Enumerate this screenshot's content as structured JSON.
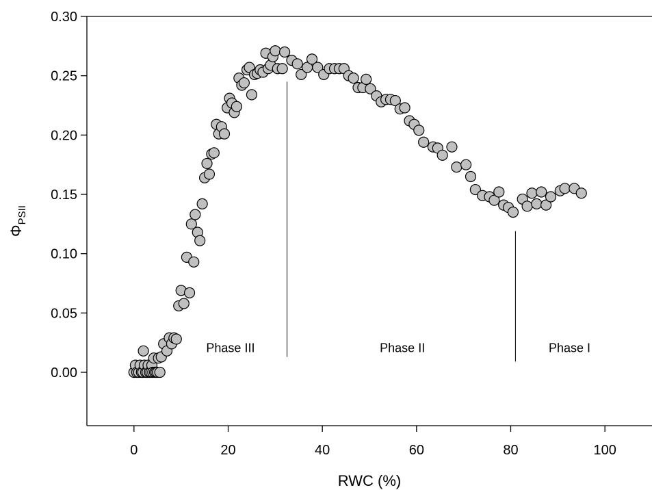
{
  "chart_data": {
    "type": "scatter",
    "xlabel": "RWC (%)",
    "ylabel": "Φ",
    "ylabel_subscript": "PSII",
    "xlim": [
      -10,
      110
    ],
    "ylim": [
      -0.045,
      0.3
    ],
    "x_ticks": [
      {
        "value": 0,
        "label": "0"
      },
      {
        "value": 20,
        "label": "20"
      },
      {
        "value": 40,
        "label": "40"
      },
      {
        "value": 60,
        "label": "60"
      },
      {
        "value": 80,
        "label": "80"
      },
      {
        "value": 100,
        "label": "100"
      }
    ],
    "y_ticks": [
      {
        "value": 0,
        "label": "0.00"
      },
      {
        "value": 0.05,
        "label": "0.05"
      },
      {
        "value": 0.1,
        "label": "0.10"
      },
      {
        "value": 0.15,
        "label": "0.15"
      },
      {
        "value": 0.2,
        "label": "0.20"
      },
      {
        "value": 0.25,
        "label": "0.25"
      },
      {
        "value": 0.3,
        "label": "0.30"
      }
    ],
    "grid": false,
    "colors": {
      "marker_fill": "#c0c0c0",
      "marker_edge": "#000000"
    },
    "phase_dividers": [
      {
        "x": 32.5,
        "y_top": 0.245,
        "y_bottom": 0.013
      },
      {
        "x": 81.0,
        "y_top": 0.119,
        "y_bottom": 0.009
      }
    ],
    "phase_labels": [
      {
        "text": "Phase III",
        "x": 20.5,
        "y": 0.017
      },
      {
        "text": "Phase II",
        "x": 57.0,
        "y": 0.017
      },
      {
        "text": "Phase I",
        "x": 92.5,
        "y": 0.017
      }
    ],
    "points": [
      [
        0.0,
        0.0
      ],
      [
        0.3,
        0.006
      ],
      [
        0.6,
        0.0
      ],
      [
        1.0,
        0.0
      ],
      [
        1.3,
        0.006
      ],
      [
        1.6,
        0.0
      ],
      [
        1.9,
        0.0
      ],
      [
        2.0,
        0.018
      ],
      [
        2.2,
        0.006
      ],
      [
        2.5,
        0.0
      ],
      [
        2.8,
        0.0
      ],
      [
        3.0,
        0.006
      ],
      [
        3.3,
        0.0
      ],
      [
        3.6,
        0.0
      ],
      [
        3.8,
        0.006
      ],
      [
        4.0,
        0.0
      ],
      [
        4.2,
        0.012
      ],
      [
        4.4,
        0.0
      ],
      [
        4.7,
        0.0
      ],
      [
        5.0,
        0.0
      ],
      [
        5.2,
        0.012
      ],
      [
        5.5,
        0.0
      ],
      [
        5.8,
        0.013
      ],
      [
        6.3,
        0.024
      ],
      [
        7.0,
        0.018
      ],
      [
        7.5,
        0.029
      ],
      [
        8.0,
        0.024
      ],
      [
        8.5,
        0.029
      ],
      [
        9.0,
        0.028
      ],
      [
        9.5,
        0.056
      ],
      [
        10.0,
        0.069
      ],
      [
        10.6,
        0.058
      ],
      [
        11.2,
        0.097
      ],
      [
        11.8,
        0.067
      ],
      [
        12.2,
        0.125
      ],
      [
        12.7,
        0.093
      ],
      [
        13.0,
        0.133
      ],
      [
        13.5,
        0.118
      ],
      [
        14.0,
        0.111
      ],
      [
        14.5,
        0.142
      ],
      [
        15.0,
        0.164
      ],
      [
        15.5,
        0.176
      ],
      [
        16.0,
        0.167
      ],
      [
        16.5,
        0.184
      ],
      [
        17.0,
        0.185
      ],
      [
        17.5,
        0.209
      ],
      [
        18.0,
        0.201
      ],
      [
        18.6,
        0.207
      ],
      [
        19.2,
        0.201
      ],
      [
        19.8,
        0.223
      ],
      [
        20.3,
        0.231
      ],
      [
        20.8,
        0.227
      ],
      [
        21.3,
        0.219
      ],
      [
        21.8,
        0.224
      ],
      [
        22.3,
        0.248
      ],
      [
        22.9,
        0.242
      ],
      [
        23.4,
        0.244
      ],
      [
        24.0,
        0.255
      ],
      [
        24.5,
        0.257
      ],
      [
        25.0,
        0.234
      ],
      [
        25.6,
        0.251
      ],
      [
        26.2,
        0.252
      ],
      [
        26.8,
        0.255
      ],
      [
        27.4,
        0.253
      ],
      [
        28.0,
        0.269
      ],
      [
        28.5,
        0.256
      ],
      [
        29.0,
        0.259
      ],
      [
        29.5,
        0.266
      ],
      [
        30.0,
        0.271
      ],
      [
        30.5,
        0.256
      ],
      [
        31.5,
        0.256
      ],
      [
        32.0,
        0.27
      ],
      [
        33.5,
        0.263
      ],
      [
        34.7,
        0.26
      ],
      [
        35.5,
        0.251
      ],
      [
        36.8,
        0.257
      ],
      [
        37.8,
        0.264
      ],
      [
        39.0,
        0.257
      ],
      [
        40.3,
        0.251
      ],
      [
        41.5,
        0.256
      ],
      [
        42.6,
        0.256
      ],
      [
        43.6,
        0.256
      ],
      [
        44.6,
        0.256
      ],
      [
        45.6,
        0.25
      ],
      [
        46.6,
        0.248
      ],
      [
        47.6,
        0.24
      ],
      [
        48.6,
        0.24
      ],
      [
        49.3,
        0.247
      ],
      [
        50.2,
        0.239
      ],
      [
        51.5,
        0.233
      ],
      [
        52.5,
        0.228
      ],
      [
        53.5,
        0.23
      ],
      [
        54.5,
        0.23
      ],
      [
        55.5,
        0.229
      ],
      [
        56.5,
        0.222
      ],
      [
        57.5,
        0.223
      ],
      [
        58.5,
        0.212
      ],
      [
        59.5,
        0.209
      ],
      [
        60.5,
        0.204
      ],
      [
        61.5,
        0.194
      ],
      [
        63.5,
        0.19
      ],
      [
        64.5,
        0.189
      ],
      [
        65.5,
        0.183
      ],
      [
        67.5,
        0.19
      ],
      [
        68.5,
        0.173
      ],
      [
        70.5,
        0.175
      ],
      [
        71.5,
        0.165
      ],
      [
        72.5,
        0.154
      ],
      [
        74.0,
        0.149
      ],
      [
        75.5,
        0.148
      ],
      [
        76.5,
        0.145
      ],
      [
        77.5,
        0.152
      ],
      [
        78.5,
        0.141
      ],
      [
        79.5,
        0.139
      ],
      [
        80.5,
        0.135
      ],
      [
        82.5,
        0.146
      ],
      [
        83.5,
        0.14
      ],
      [
        84.5,
        0.151
      ],
      [
        85.5,
        0.142
      ],
      [
        86.5,
        0.152
      ],
      [
        87.5,
        0.141
      ],
      [
        88.5,
        0.148
      ],
      [
        90.5,
        0.153
      ],
      [
        91.5,
        0.155
      ],
      [
        93.5,
        0.155
      ],
      [
        95.0,
        0.151
      ]
    ]
  }
}
